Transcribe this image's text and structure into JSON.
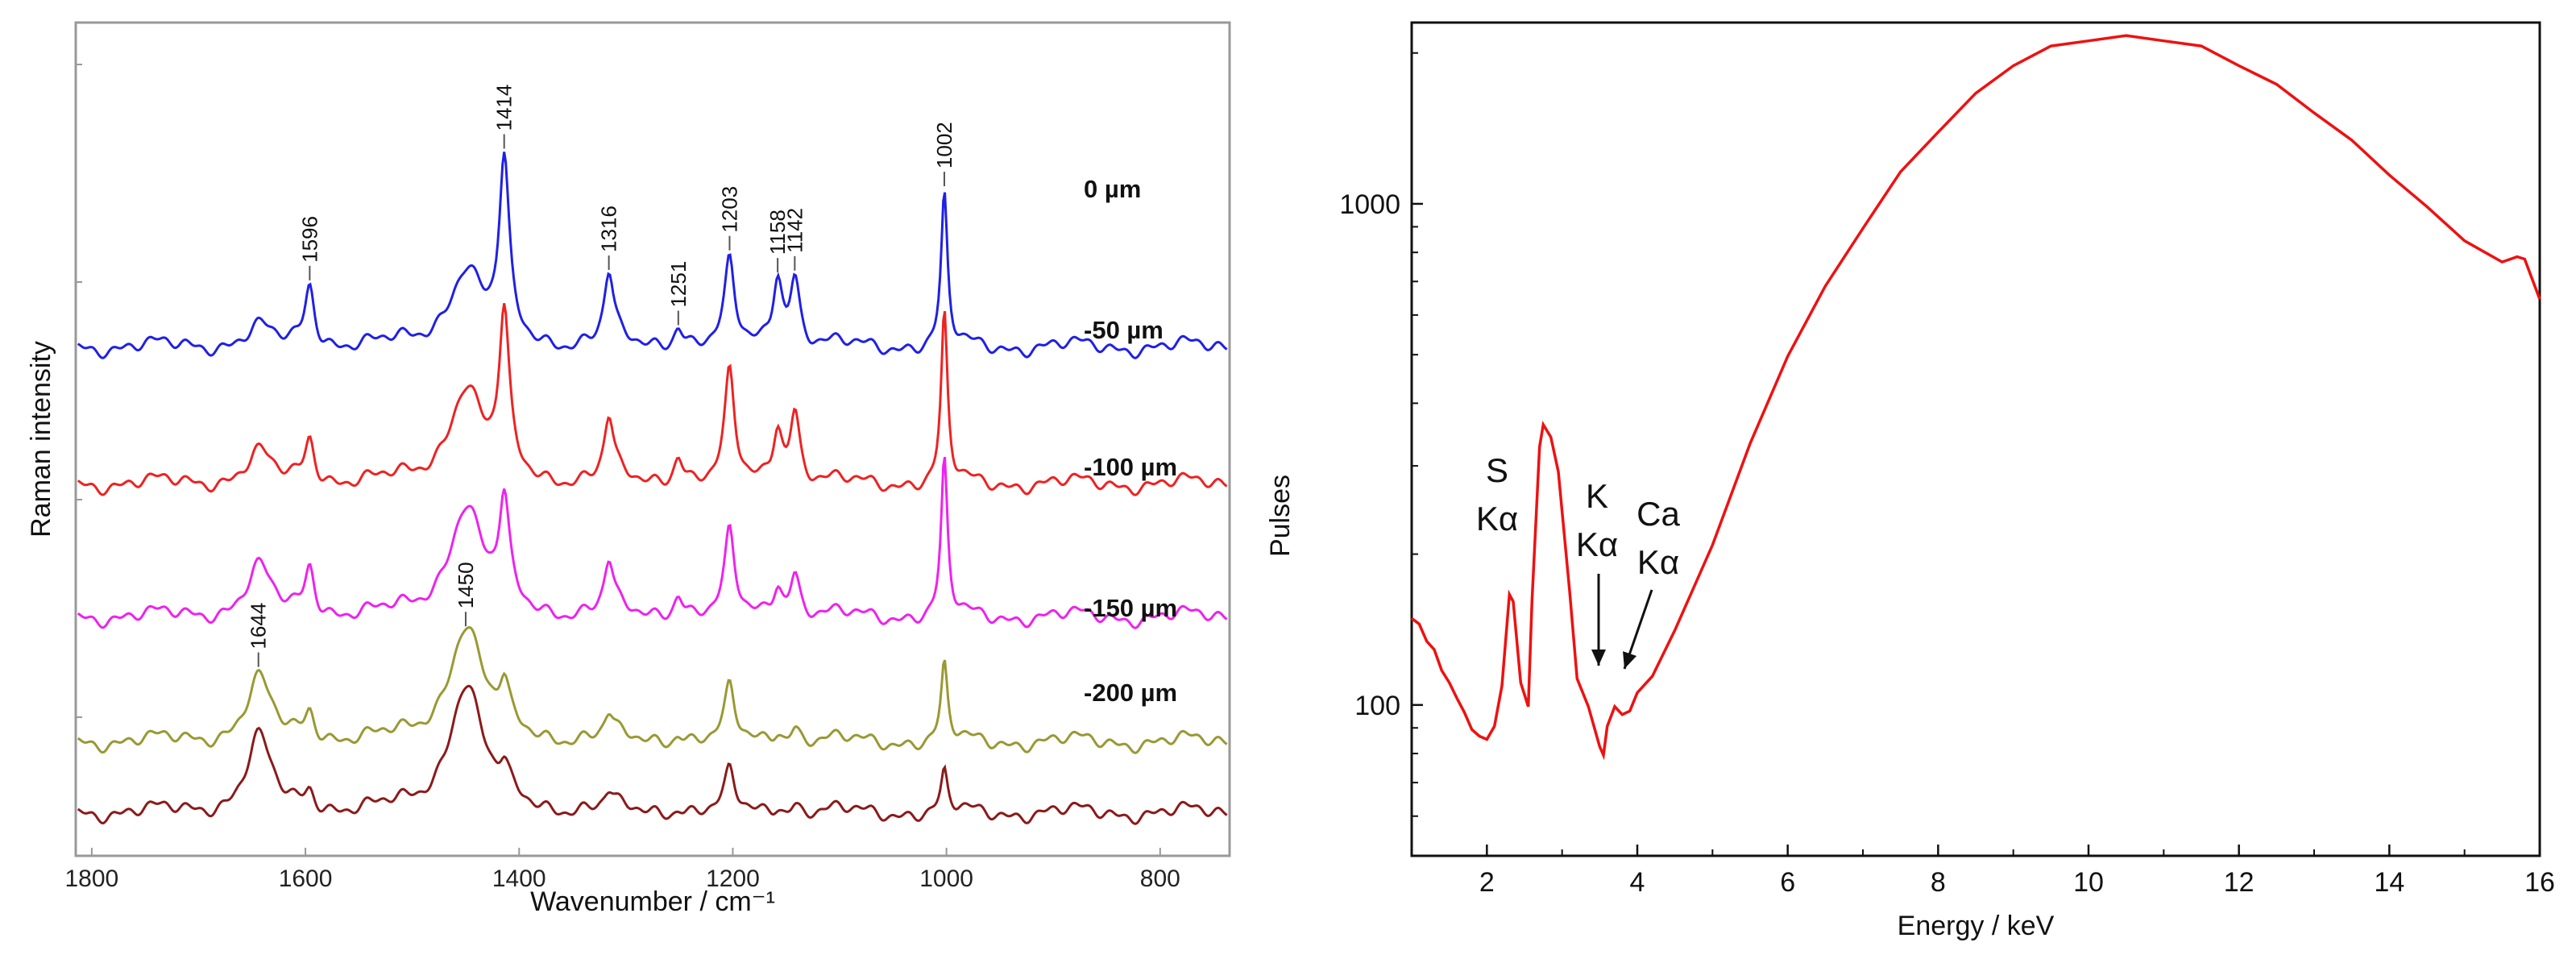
{
  "chart_data": [
    {
      "type": "line",
      "panel": "left",
      "xlabel": "Wavenumber / cm⁻¹",
      "ylabel": "Raman intensity",
      "xlim": [
        1815,
        735
      ],
      "x_reversed": true,
      "x_ticks": [
        1800,
        1600,
        1400,
        1200,
        1000,
        800
      ],
      "y_tick_labels": "none",
      "series": [
        {
          "name": "0 µm",
          "color": "#2020e6",
          "peaks": [
            {
              "x": 1644,
              "h": 0.1
            },
            {
              "x": 1596,
              "h": 0.33
            },
            {
              "x": 1450,
              "h": 0.42
            },
            {
              "x": 1414,
              "h": 0.93
            },
            {
              "x": 1316,
              "h": 0.37
            },
            {
              "x": 1251,
              "h": 0.12
            },
            {
              "x": 1203,
              "h": 0.43
            },
            {
              "x": 1158,
              "h": 0.38
            },
            {
              "x": 1142,
              "h": 0.36
            },
            {
              "x": 1002,
              "h": 0.8
            }
          ],
          "peak_labels": [
            1596,
            1414,
            1316,
            1251,
            1203,
            1158,
            1142,
            1002
          ]
        },
        {
          "name": "-50 µm",
          "color": "#ee2222",
          "peaks": [
            {
              "x": 1644,
              "h": 0.16
            },
            {
              "x": 1596,
              "h": 0.24
            },
            {
              "x": 1450,
              "h": 0.52
            },
            {
              "x": 1414,
              "h": 0.83
            },
            {
              "x": 1316,
              "h": 0.33
            },
            {
              "x": 1251,
              "h": 0.16
            },
            {
              "x": 1203,
              "h": 0.57
            },
            {
              "x": 1158,
              "h": 0.3
            },
            {
              "x": 1142,
              "h": 0.38
            },
            {
              "x": 1002,
              "h": 0.9
            }
          ],
          "peak_labels": []
        },
        {
          "name": "-100 µm",
          "color": "#ee22ee",
          "peaks": [
            {
              "x": 1644,
              "h": 0.26
            },
            {
              "x": 1596,
              "h": 0.26
            },
            {
              "x": 1450,
              "h": 0.6
            },
            {
              "x": 1414,
              "h": 0.53
            },
            {
              "x": 1316,
              "h": 0.27
            },
            {
              "x": 1251,
              "h": 0.13
            },
            {
              "x": 1203,
              "h": 0.43
            },
            {
              "x": 1158,
              "h": 0.17
            },
            {
              "x": 1142,
              "h": 0.23
            },
            {
              "x": 1002,
              "h": 0.83
            }
          ],
          "peak_labels": []
        },
        {
          "name": "-150 µm",
          "color": "#999933",
          "peaks": [
            {
              "x": 1644,
              "h": 0.33
            },
            {
              "x": 1596,
              "h": 0.15
            },
            {
              "x": 1450,
              "h": 0.63
            },
            {
              "x": 1414,
              "h": 0.2
            },
            {
              "x": 1316,
              "h": 0.12
            },
            {
              "x": 1251,
              "h": 0.05
            },
            {
              "x": 1203,
              "h": 0.27
            },
            {
              "x": 1158,
              "h": 0.06
            },
            {
              "x": 1142,
              "h": 0.08
            },
            {
              "x": 1002,
              "h": 0.4
            }
          ],
          "peak_labels": [
            1644,
            1450
          ]
        },
        {
          "name": "-200 µm",
          "color": "#8b1a1a",
          "peaks": [
            {
              "x": 1644,
              "h": 0.4
            },
            {
              "x": 1596,
              "h": 0.1
            },
            {
              "x": 1450,
              "h": 0.7
            },
            {
              "x": 1414,
              "h": 0.12
            },
            {
              "x": 1316,
              "h": 0.08
            },
            {
              "x": 1251,
              "h": 0.03
            },
            {
              "x": 1203,
              "h": 0.2
            },
            {
              "x": 1158,
              "h": 0.04
            },
            {
              "x": 1142,
              "h": 0.05
            },
            {
              "x": 1002,
              "h": 0.2
            }
          ],
          "peak_labels": []
        }
      ]
    },
    {
      "type": "line",
      "panel": "right",
      "xlabel": "Energy / keV",
      "ylabel": "Pulses",
      "y_scale": "log",
      "xlim": [
        1,
        16
      ],
      "ylim": [
        50,
        2300
      ],
      "x_ticks": [
        2,
        4,
        6,
        8,
        10,
        12,
        14,
        16
      ],
      "y_ticks": [
        100,
        1000
      ],
      "series": [
        {
          "name": "spectrum",
          "color": "#ee1111",
          "points": [
            [
              1.0,
              150
            ],
            [
              1.1,
              144
            ],
            [
              1.2,
              135
            ],
            [
              1.3,
              128
            ],
            [
              1.4,
              118
            ],
            [
              1.5,
              110
            ],
            [
              1.6,
              104
            ],
            [
              1.7,
              96
            ],
            [
              1.8,
              90
            ],
            [
              1.9,
              86
            ],
            [
              2.0,
              86
            ],
            [
              2.1,
              90
            ],
            [
              2.2,
              110
            ],
            [
              2.3,
              165
            ],
            [
              2.35,
              162
            ],
            [
              2.45,
              110
            ],
            [
              2.55,
              100
            ],
            [
              2.6,
              160
            ],
            [
              2.7,
              330
            ],
            [
              2.75,
              360
            ],
            [
              2.85,
              345
            ],
            [
              2.95,
              290
            ],
            [
              3.1,
              170
            ],
            [
              3.2,
              112
            ],
            [
              3.35,
              100
            ],
            [
              3.5,
              82
            ],
            [
              3.55,
              80
            ],
            [
              3.6,
              90
            ],
            [
              3.7,
              100
            ],
            [
              3.8,
              95
            ],
            [
              3.9,
              98
            ],
            [
              4.0,
              105
            ],
            [
              4.2,
              115
            ],
            [
              4.5,
              140
            ],
            [
              5.0,
              210
            ],
            [
              5.5,
              330
            ],
            [
              6.0,
              500
            ],
            [
              6.5,
              680
            ],
            [
              7.0,
              900
            ],
            [
              7.5,
              1150
            ],
            [
              8.0,
              1400
            ],
            [
              8.5,
              1650
            ],
            [
              9.0,
              1900
            ],
            [
              9.5,
              2050
            ],
            [
              10.0,
              2130
            ],
            [
              10.5,
              2150
            ],
            [
              11.0,
              2130
            ],
            [
              11.5,
              2050
            ],
            [
              12.0,
              1900
            ],
            [
              12.5,
              1720
            ],
            [
              13.0,
              1530
            ],
            [
              13.5,
              1330
            ],
            [
              14.0,
              1150
            ],
            [
              14.5,
              980
            ],
            [
              15.0,
              850
            ],
            [
              15.5,
              760
            ],
            [
              15.7,
              790
            ],
            [
              15.8,
              770
            ],
            [
              16.0,
              650
            ]
          ]
        }
      ],
      "annotations": [
        {
          "line1": "S",
          "line2": "Kα"
        },
        {
          "line1": "K",
          "line2": "Kα"
        },
        {
          "line1": "Ca",
          "line2": "Kα"
        }
      ]
    }
  ]
}
